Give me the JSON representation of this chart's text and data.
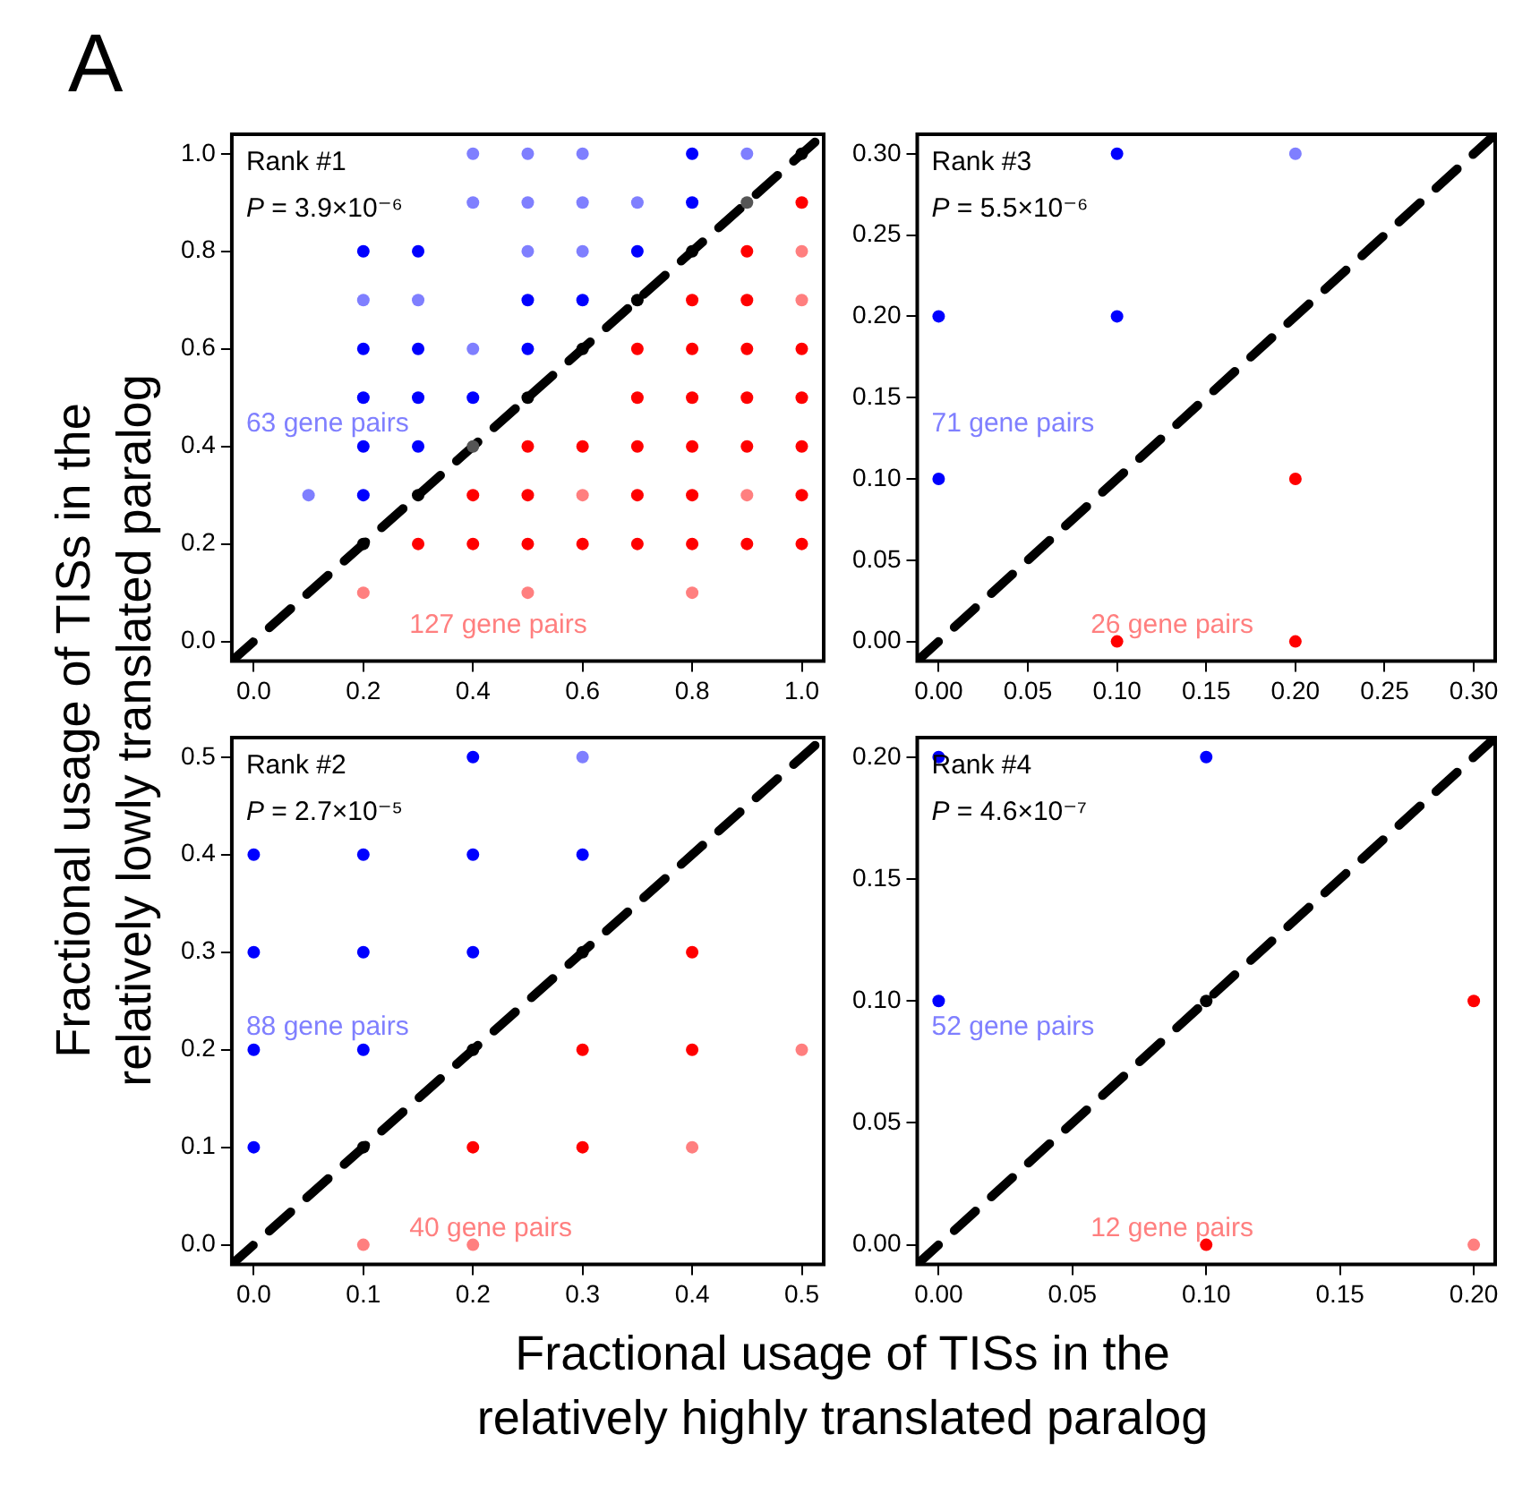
{
  "chart_data": [
    {
      "type": "scatter",
      "title": "A",
      "xlabel": "Fractional usage of TISs in the\nrelatively highly translated paralog",
      "ylabel": "Fractional usage of TISs in the\nrelatively lowly translated paralog",
      "legend": false,
      "marker": "circle",
      "xlim": [
        -0.04,
        1.04
      ],
      "ylim": [
        -0.04,
        1.04
      ],
      "xticks": [
        {
          "value": 0,
          "label": "0.0"
        },
        0.2,
        0.4,
        0.6,
        0.8,
        {
          "value": 1,
          "label": "1.0"
        }
      ],
      "yticks": [
        {
          "value": 0,
          "label": "0.0"
        },
        0.2,
        0.4,
        0.6,
        0.8,
        {
          "value": 1,
          "label": "1.0"
        }
      ],
      "annotations": [
        "Rank #1",
        "P = 3.9×10⁻⁶",
        "63 gene pairs",
        "127 gene pairs"
      ],
      "series": [
        {
          "color": "#0000ff",
          "x": [
            0.8,
            0.8,
            0.2,
            0.3,
            0.7,
            0.5,
            0.6,
            0.2,
            0.3,
            0.5,
            0.2,
            0.3,
            0.4,
            0.2,
            0.3,
            0.2
          ],
          "values": [
            1,
            0.9,
            0.8,
            0.8,
            0.8,
            0.7,
            0.7,
            0.6,
            0.6,
            0.6,
            0.5,
            0.5,
            0.5,
            0.4,
            0.4,
            0.3
          ]
        },
        {
          "color": "#7f7fff",
          "x": [
            0.4,
            0.5,
            0.6,
            0.9,
            0.4,
            0.5,
            0.6,
            0.7,
            0.5,
            0.6,
            0.2,
            0.3,
            0.4,
            0.1
          ],
          "values": [
            1,
            1,
            1,
            1,
            0.9,
            0.9,
            0.9,
            0.9,
            0.8,
            0.8,
            0.7,
            0.7,
            0.6,
            0.3
          ]
        },
        {
          "color": "#ff0000",
          "x": [
            1,
            0.9,
            0.8,
            0.9,
            0.7,
            0.8,
            0.9,
            1,
            0.7,
            0.8,
            0.9,
            1,
            0.5,
            0.6,
            0.7,
            0.8,
            0.9,
            1,
            0.4,
            0.5,
            0.7,
            0.8,
            1,
            0.3,
            0.4,
            0.5,
            0.6,
            0.7,
            0.8,
            0.9,
            1
          ],
          "values": [
            0.9,
            0.8,
            0.7,
            0.7,
            0.6,
            0.6,
            0.6,
            0.6,
            0.5,
            0.5,
            0.5,
            0.5,
            0.4,
            0.4,
            0.4,
            0.4,
            0.4,
            0.4,
            0.3,
            0.3,
            0.3,
            0.3,
            0.3,
            0.2,
            0.2,
            0.2,
            0.2,
            0.2,
            0.2,
            0.2,
            0.2
          ]
        },
        {
          "color": "#ff7f7f",
          "x": [
            1,
            1,
            0.6,
            0.9,
            0.2,
            0.5,
            0.8
          ],
          "values": [
            0.8,
            0.7,
            0.3,
            0.3,
            0.1,
            0.1,
            0.1
          ]
        },
        {
          "color": "#000000",
          "x": [
            1,
            0.8,
            0.7,
            0.6,
            0.5,
            0.3,
            0.2
          ],
          "values": [
            1,
            0.8,
            0.7,
            0.6,
            0.5,
            0.3,
            0.2
          ]
        },
        {
          "color": "#555555",
          "x": [
            0.9,
            0.4
          ],
          "values": [
            0.9,
            0.4
          ]
        },
        {
          "type": "line",
          "line_style": "dashed",
          "marker": "none",
          "color": "#000000",
          "x": [
            -0.04,
            1.04
          ],
          "values": [
            -0.04,
            1.04
          ]
        }
      ]
    },
    {
      "type": "scatter",
      "legend": false,
      "marker": "circle",
      "xlim": [
        -0.012,
        0.312
      ],
      "ylim": [
        -0.012,
        0.312
      ],
      "xticks": [
        {
          "value": 0,
          "label": "0.00"
        },
        0.05,
        {
          "value": 0.1,
          "label": "0.10"
        },
        0.15,
        {
          "value": 0.2,
          "label": "0.20"
        },
        0.25,
        {
          "value": 0.3,
          "label": "0.30"
        }
      ],
      "yticks": [
        {
          "value": 0,
          "label": "0.00"
        },
        0.05,
        {
          "value": 0.1,
          "label": "0.10"
        },
        0.15,
        {
          "value": 0.2,
          "label": "0.20"
        },
        0.25,
        {
          "value": 0.3,
          "label": "0.30"
        }
      ],
      "annotations": [
        "Rank #3",
        "P = 5.5×10⁻⁶",
        "71 gene pairs",
        "26 gene pairs"
      ],
      "series": [
        {
          "color": "#0000ff",
          "x": [
            0.1,
            0,
            0.1,
            0
          ],
          "values": [
            0.3,
            0.2,
            0.2,
            0.1
          ]
        },
        {
          "color": "#7f7fff",
          "x": [
            0.2
          ],
          "values": [
            0.3
          ]
        },
        {
          "color": "#ff0000",
          "x": [
            0.2,
            0.1,
            0.2
          ],
          "values": [
            0.1,
            0,
            0
          ]
        },
        {
          "type": "line",
          "line_style": "dashed",
          "marker": "none",
          "color": "#000000",
          "x": [
            -0.012,
            0.312
          ],
          "values": [
            -0.012,
            0.312
          ]
        }
      ]
    },
    {
      "type": "scatter",
      "legend": false,
      "marker": "circle",
      "xlim": [
        -0.02,
        0.52
      ],
      "ylim": [
        -0.02,
        0.52
      ],
      "xticks": [
        {
          "value": 0,
          "label": "0.0"
        },
        0.1,
        0.2,
        0.3,
        0.4,
        0.5
      ],
      "yticks": [
        {
          "value": 0,
          "label": "0.0"
        },
        0.1,
        0.2,
        0.3,
        0.4,
        0.5
      ],
      "annotations": [
        "Rank #2",
        "P = 2.7×10⁻⁵",
        "88 gene pairs",
        "40 gene pairs"
      ],
      "series": [
        {
          "color": "#0000ff",
          "x": [
            0.2,
            0,
            0.1,
            0.2,
            0.3,
            0,
            0.1,
            0.2,
            0,
            0.1,
            0
          ],
          "values": [
            0.5,
            0.4,
            0.4,
            0.4,
            0.4,
            0.3,
            0.3,
            0.3,
            0.2,
            0.2,
            0.1
          ]
        },
        {
          "color": "#7f7fff",
          "x": [
            0.3
          ],
          "values": [
            0.5
          ]
        },
        {
          "color": "#ff0000",
          "x": [
            0.4,
            0.3,
            0.4,
            0.2,
            0.3
          ],
          "values": [
            0.3,
            0.2,
            0.2,
            0.1,
            0.1
          ]
        },
        {
          "color": "#ff7f7f",
          "x": [
            0.5,
            0.4,
            0.1,
            0.2
          ],
          "values": [
            0.2,
            0.1,
            0,
            0
          ]
        },
        {
          "color": "#000000",
          "x": [
            0.3,
            0.2,
            0.1
          ],
          "values": [
            0.3,
            0.2,
            0.1
          ]
        },
        {
          "type": "line",
          "line_style": "dashed",
          "marker": "none",
          "color": "#000000",
          "x": [
            -0.02,
            0.52
          ],
          "values": [
            -0.02,
            0.52
          ]
        }
      ]
    },
    {
      "type": "scatter",
      "legend": false,
      "marker": "circle",
      "xlim": [
        -0.008,
        0.208
      ],
      "ylim": [
        -0.008,
        0.208
      ],
      "xticks": [
        {
          "value": 0,
          "label": "0.00"
        },
        0.05,
        {
          "value": 0.1,
          "label": "0.10"
        },
        0.15,
        {
          "value": 0.2,
          "label": "0.20"
        }
      ],
      "yticks": [
        {
          "value": 0,
          "label": "0.00"
        },
        0.05,
        {
          "value": 0.1,
          "label": "0.10"
        },
        0.15,
        {
          "value": 0.2,
          "label": "0.20"
        }
      ],
      "annotations": [
        "Rank #4",
        "P = 4.6×10⁻⁷",
        "52 gene pairs",
        "12 gene pairs"
      ],
      "series": [
        {
          "color": "#0000ff",
          "x": [
            0,
            0.1,
            0
          ],
          "values": [
            0.2,
            0.2,
            0.1
          ]
        },
        {
          "color": "#ff0000",
          "x": [
            0.2,
            0.1
          ],
          "values": [
            0.1,
            0
          ]
        },
        {
          "color": "#ff7f7f",
          "x": [
            0.2
          ],
          "values": [
            0
          ]
        },
        {
          "color": "#000000",
          "x": [
            0.1
          ],
          "values": [
            0.1
          ]
        },
        {
          "type": "line",
          "line_style": "dashed",
          "marker": "none",
          "color": "#000000",
          "x": [
            -0.008,
            0.208
          ],
          "values": [
            -0.008,
            0.208
          ]
        }
      ]
    }
  ]
}
